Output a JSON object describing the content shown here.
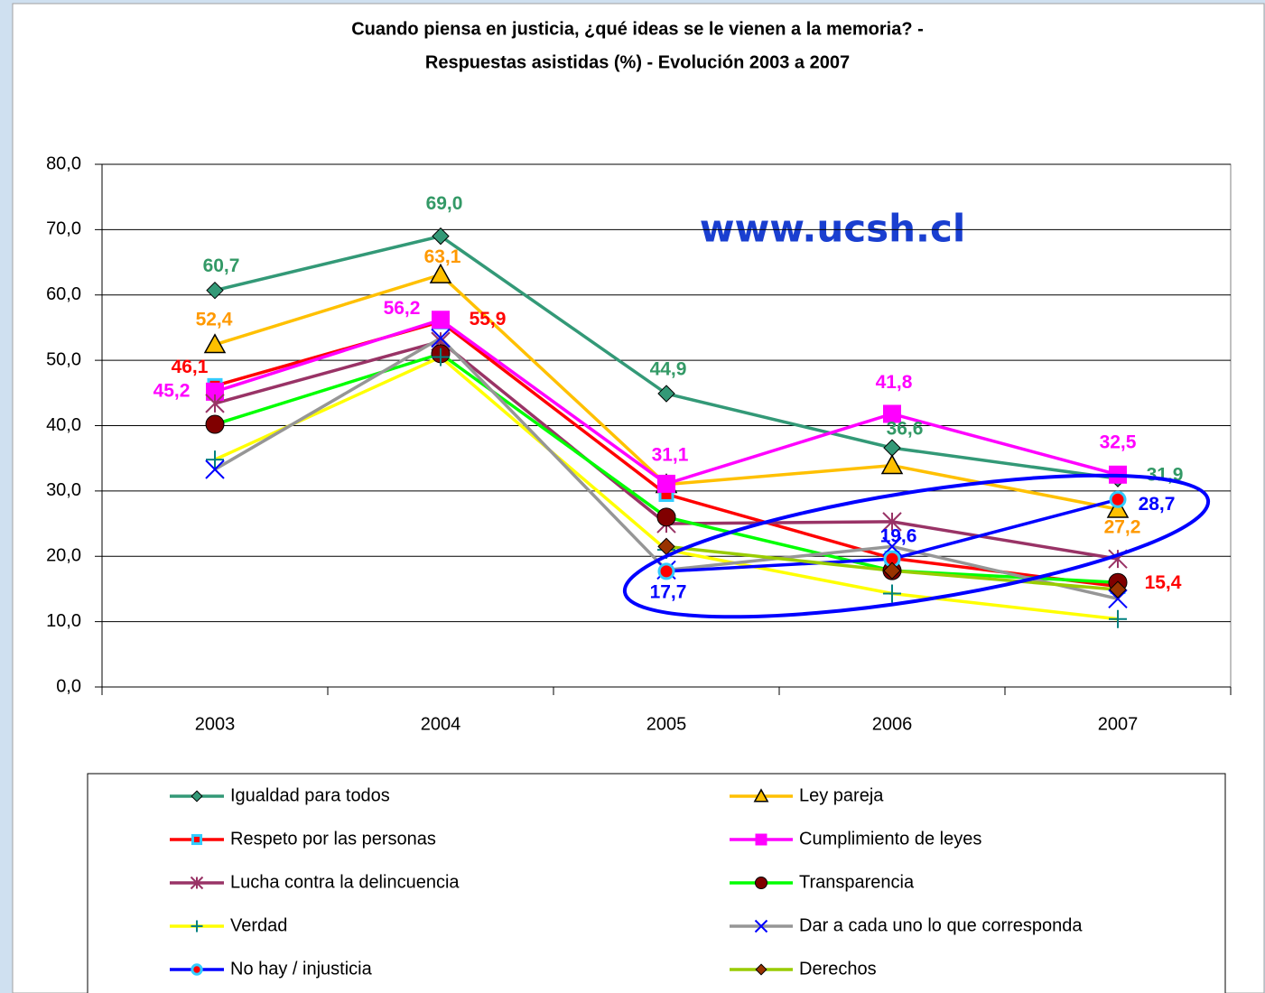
{
  "chart_data": {
    "type": "line",
    "title": "Cuando piensa en justicia, ¿qué ideas se le vienen a la memoria? -",
    "subtitle": "Respuestas asistidas (%) - Evolución 2003 a 2007",
    "annotation": "www.ucsh.cl",
    "categories": [
      "2003",
      "2004",
      "2005",
      "2006",
      "2007"
    ],
    "ylim": [
      0,
      80
    ],
    "yticks": [
      {
        "value": 0,
        "label": "0,0"
      },
      {
        "value": 10,
        "label": "10,0"
      },
      {
        "value": 20,
        "label": "20,0"
      },
      {
        "value": 30,
        "label": "30,0"
      },
      {
        "value": 40,
        "label": "40,0"
      },
      {
        "value": 50,
        "label": "50,0"
      },
      {
        "value": 60,
        "label": "60,0"
      },
      {
        "value": 70,
        "label": "70,0"
      },
      {
        "value": 80,
        "label": "80,0"
      }
    ],
    "grid": true,
    "legend": "bottom",
    "series": [
      {
        "name": "Igualdad para todos",
        "color": "#339977",
        "marker": "diamond",
        "marker_color": "#339977",
        "label_color": "#339966",
        "values": [
          60.7,
          69.0,
          44.9,
          36.6,
          31.9
        ],
        "value_labels": [
          "60,7",
          "69,0",
          "44,9",
          "36,6",
          "31,9"
        ]
      },
      {
        "name": "Ley pareja",
        "color": "#ffc000",
        "marker": "triangle",
        "marker_color": "#ffc000",
        "label_color": "#ff9900",
        "values": [
          52.4,
          63.1,
          31.0,
          33.9,
          27.2
        ],
        "value_labels": [
          "52,4",
          "63,1",
          null,
          null,
          "27,2"
        ]
      },
      {
        "name": "Respeto por las personas",
        "color": "#ff0000",
        "marker": "square-small",
        "marker_color": "#ff0000",
        "label_color": "#ff0000",
        "values": [
          46.1,
          55.9,
          29.5,
          19.7,
          15.4
        ],
        "value_labels": [
          "46,1",
          "55,9",
          null,
          null,
          "15,4"
        ]
      },
      {
        "name": "Cumplimiento de leyes",
        "color": "#ff00ff",
        "marker": "square",
        "marker_color": "#ff00ff",
        "label_color": "#ff00ff",
        "values": [
          45.2,
          56.2,
          31.1,
          41.8,
          32.5
        ],
        "value_labels": [
          "45,2",
          "56,2",
          "31,1",
          "41,8",
          "32,5"
        ]
      },
      {
        "name": "Lucha contra la delincuencia",
        "color": "#993366",
        "marker": "star",
        "marker_color": "#993366",
        "values": [
          43.4,
          52.9,
          25.0,
          25.3,
          19.6
        ]
      },
      {
        "name": "Transparencia",
        "color": "#00ff00",
        "marker": "circle",
        "marker_color": "#800000",
        "values": [
          40.2,
          51.0,
          26.0,
          17.8,
          16.0
        ]
      },
      {
        "name": "Verdad",
        "color": "#ffff00",
        "marker": "plus",
        "marker_color": "#008080",
        "values": [
          34.8,
          50.5,
          21.0,
          14.3,
          10.4
        ]
      },
      {
        "name": "Dar a cada uno lo que corresponda",
        "color": "#969696",
        "marker": "x",
        "marker_color": "#0000ff",
        "values": [
          33.3,
          53.4,
          17.9,
          21.5,
          13.5
        ]
      },
      {
        "name": "No hay / injusticia",
        "color": "#0000ff",
        "marker": "circle-ring",
        "marker_color": "#ff0000",
        "label_color": "#0000ff",
        "values": [
          null,
          null,
          17.7,
          19.6,
          28.7
        ],
        "value_labels": [
          null,
          null,
          "17,7",
          "19,6",
          "28,7"
        ]
      },
      {
        "name": "Derechos",
        "color": "#99cc00",
        "marker": "diamond",
        "marker_color": "#993300",
        "values": [
          null,
          null,
          21.5,
          17.8,
          14.9
        ]
      }
    ]
  }
}
